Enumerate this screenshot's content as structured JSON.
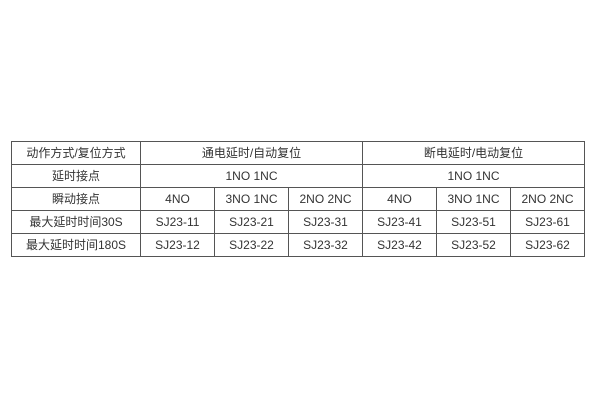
{
  "page": {
    "background_color": "#ffffff",
    "border_color": "#555555",
    "text_color": "#333333"
  },
  "table": {
    "rows": [
      {
        "label": "动作方式/复位方式",
        "cells": [
          "通电延时/自动复位",
          "断电延时/电动复位"
        ]
      },
      {
        "label": "延时接点",
        "cells": [
          "1NO 1NC",
          "1NO 1NC"
        ]
      },
      {
        "label": "瞬动接点",
        "cells": [
          "4NO",
          "3NO 1NC",
          "2NO 2NC",
          "4NO",
          "3NO 1NC",
          "2NO 2NC"
        ]
      },
      {
        "label": "最大延时时间30S",
        "cells": [
          "SJ23-11",
          "SJ23-21",
          "SJ23-31",
          "SJ23-41",
          "SJ23-51",
          "SJ23-61"
        ]
      },
      {
        "label": "最大延时时间180S",
        "cells": [
          "SJ23-12",
          "SJ23-22",
          "SJ23-32",
          "SJ23-42",
          "SJ23-52",
          "SJ23-62"
        ]
      }
    ]
  }
}
